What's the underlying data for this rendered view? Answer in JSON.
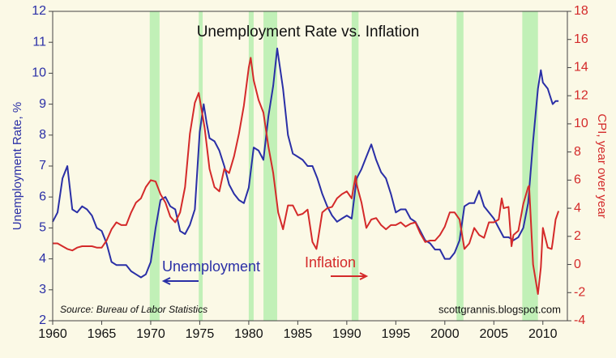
{
  "chart_data": {
    "type": "line",
    "title": "Unemployment Rate vs. Inflation",
    "y_label": "Unemployment Rate, %",
    "y2_label": "CPI, year over year",
    "source": "Source: Bureau of Labor Statistics",
    "credit": "scottgrannis.blogspot.com",
    "xlim": [
      1960,
      2012.5
    ],
    "xticks": [
      1960,
      1965,
      1970,
      1975,
      1980,
      1985,
      1990,
      1995,
      2000,
      2005,
      2010
    ],
    "ylim": [
      2,
      12
    ],
    "yticks": [
      2,
      3,
      4,
      5,
      6,
      7,
      8,
      9,
      10,
      11,
      12
    ],
    "y2lim": [
      -4,
      18
    ],
    "y2ticks": [
      -4,
      -2,
      0,
      2,
      4,
      6,
      8,
      10,
      12,
      14,
      16,
      18
    ],
    "recessions": [
      [
        1969.9,
        1970.9
      ],
      [
        1974.9,
        1975.3
      ],
      [
        1980.0,
        1980.5
      ],
      [
        1981.5,
        1982.9
      ],
      [
        1990.5,
        1991.2
      ],
      [
        2001.2,
        2001.9
      ],
      [
        2007.9,
        2009.5
      ]
    ],
    "series": [
      {
        "name": "Unemployment",
        "color": "#2a2fa6",
        "x": [
          1960,
          1960.5,
          1961,
          1961.5,
          1962,
          1962.5,
          1963,
          1963.5,
          1964,
          1964.5,
          1965,
          1965.5,
          1966,
          1966.5,
          1967,
          1967.5,
          1968,
          1968.5,
          1969,
          1969.5,
          1970,
          1970.5,
          1971,
          1971.5,
          1972,
          1972.5,
          1973,
          1973.5,
          1974,
          1974.5,
          1975,
          1975.4,
          1975.7,
          1976,
          1976.5,
          1977,
          1977.5,
          1978,
          1978.5,
          1979,
          1979.5,
          1980,
          1980.5,
          1981,
          1981.5,
          1982,
          1982.5,
          1982.9,
          1983.5,
          1984,
          1984.5,
          1985,
          1985.5,
          1986,
          1986.5,
          1987,
          1987.5,
          1988,
          1988.5,
          1989,
          1989.5,
          1990,
          1990.5,
          1991,
          1991.5,
          1992,
          1992.5,
          1993,
          1993.5,
          1994,
          1994.5,
          1995,
          1995.5,
          1996,
          1996.5,
          1997,
          1997.5,
          1998,
          1998.5,
          1999,
          1999.5,
          2000,
          2000.5,
          2001,
          2001.5,
          2002,
          2002.5,
          2003,
          2003.5,
          2004,
          2004.5,
          2005,
          2005.5,
          2006,
          2006.5,
          2007,
          2007.5,
          2008,
          2008.5,
          2009,
          2009.5,
          2009.8,
          2010,
          2010.5,
          2011,
          2011.3,
          2011.6
        ],
        "values": [
          5.2,
          5.5,
          6.6,
          7.0,
          5.6,
          5.5,
          5.7,
          5.6,
          5.4,
          5.0,
          4.9,
          4.5,
          3.9,
          3.8,
          3.8,
          3.8,
          3.6,
          3.5,
          3.4,
          3.5,
          3.9,
          5.0,
          5.9,
          6.0,
          5.7,
          5.6,
          4.9,
          4.8,
          5.1,
          5.6,
          8.1,
          9.0,
          8.4,
          7.9,
          7.8,
          7.5,
          7.0,
          6.4,
          6.1,
          5.9,
          5.8,
          6.3,
          7.6,
          7.5,
          7.2,
          8.6,
          9.6,
          10.8,
          9.5,
          8.0,
          7.4,
          7.3,
          7.2,
          7.0,
          7.0,
          6.6,
          6.1,
          5.7,
          5.4,
          5.2,
          5.3,
          5.4,
          5.3,
          6.6,
          6.9,
          7.3,
          7.7,
          7.2,
          6.8,
          6.6,
          6.1,
          5.5,
          5.6,
          5.6,
          5.3,
          5.2,
          4.9,
          4.6,
          4.5,
          4.3,
          4.3,
          4.0,
          4.0,
          4.2,
          4.6,
          5.7,
          5.8,
          5.8,
          6.2,
          5.7,
          5.5,
          5.3,
          5.0,
          4.7,
          4.7,
          4.6,
          4.7,
          5.0,
          5.8,
          7.8,
          9.5,
          10.1,
          9.7,
          9.5,
          9.0,
          9.1,
          9.1
        ]
      },
      {
        "name": "Inflation",
        "color": "#d42a2a",
        "axis": "y2",
        "x": [
          1960,
          1960.5,
          1961,
          1961.5,
          1962,
          1962.5,
          1963,
          1963.5,
          1964,
          1964.5,
          1965,
          1965.5,
          1966,
          1966.5,
          1967,
          1967.5,
          1968,
          1968.5,
          1969,
          1969.5,
          1970,
          1970.5,
          1971,
          1971.5,
          1972,
          1972.5,
          1973,
          1973.5,
          1974,
          1974.5,
          1974.9,
          1975.5,
          1976,
          1976.5,
          1977,
          1977.5,
          1978,
          1978.5,
          1979,
          1979.5,
          1980,
          1980.2,
          1980.5,
          1981,
          1981.5,
          1982,
          1982.5,
          1983,
          1983.5,
          1984,
          1984.5,
          1985,
          1985.5,
          1986,
          1986.5,
          1986.9,
          1987,
          1987.5,
          1988,
          1988.5,
          1989,
          1989.5,
          1990,
          1990.5,
          1990.9,
          1991,
          1991.5,
          1992,
          1992.5,
          1993,
          1993.5,
          1994,
          1994.5,
          1995,
          1995.5,
          1996,
          1996.5,
          1997,
          1997.5,
          1998,
          1998.5,
          1999,
          1999.5,
          2000,
          2000.5,
          2001,
          2001.5,
          2002,
          2002.5,
          2003,
          2003.5,
          2004,
          2004.5,
          2005,
          2005.5,
          2005.8,
          2006,
          2006.5,
          2006.8,
          2007,
          2007.5,
          2008,
          2008.5,
          2008.6,
          2009,
          2009.5,
          2009.8,
          2010,
          2010.5,
          2010.9,
          2011,
          2011.3,
          2011.6
        ],
        "values": [
          1.5,
          1.5,
          1.3,
          1.1,
          1.0,
          1.2,
          1.3,
          1.3,
          1.3,
          1.2,
          1.2,
          1.7,
          2.5,
          3.0,
          2.8,
          2.8,
          3.7,
          4.4,
          4.7,
          5.5,
          6.0,
          5.9,
          5.0,
          4.4,
          3.4,
          3.0,
          3.7,
          5.5,
          9.3,
          11.5,
          12.2,
          9.7,
          6.8,
          5.5,
          5.2,
          6.8,
          6.5,
          7.7,
          9.3,
          11.3,
          14.0,
          14.7,
          13.1,
          11.7,
          10.8,
          8.4,
          6.5,
          3.7,
          2.5,
          4.2,
          4.2,
          3.5,
          3.6,
          3.9,
          1.6,
          1.1,
          1.5,
          3.7,
          4.0,
          4.1,
          4.7,
          5.0,
          5.2,
          4.7,
          6.3,
          5.7,
          4.4,
          2.6,
          3.2,
          3.3,
          2.8,
          2.5,
          2.8,
          2.8,
          3.0,
          2.7,
          2.9,
          3.0,
          2.2,
          1.6,
          1.7,
          1.7,
          2.1,
          2.7,
          3.7,
          3.7,
          3.2,
          1.1,
          1.5,
          2.6,
          2.1,
          1.9,
          3.0,
          3.0,
          3.2,
          4.7,
          4.0,
          4.1,
          1.3,
          2.1,
          2.4,
          4.3,
          5.5,
          5.6,
          0.0,
          -2.1,
          -0.2,
          2.6,
          1.2,
          1.1,
          1.6,
          3.2,
          3.8
        ]
      }
    ]
  }
}
